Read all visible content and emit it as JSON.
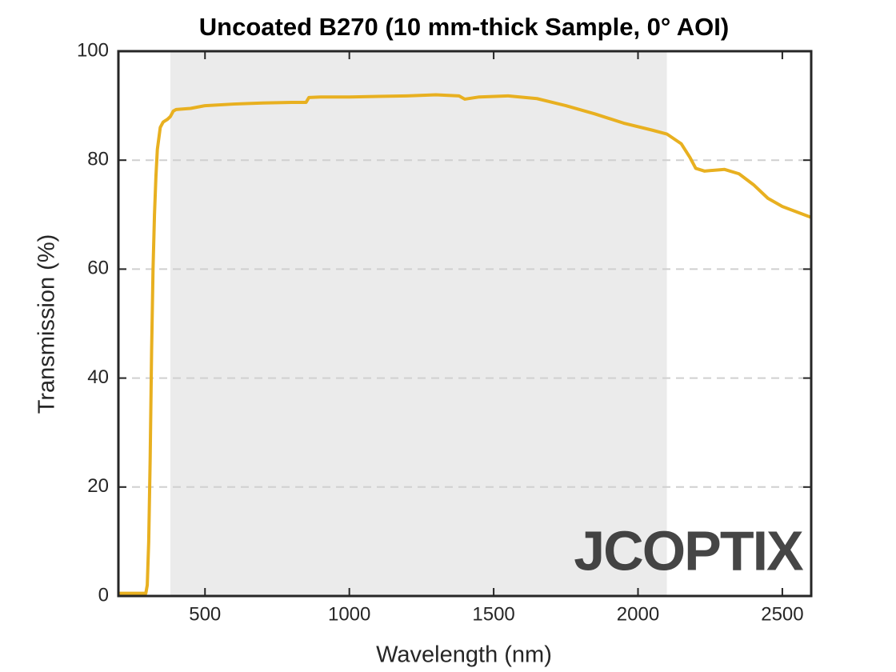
{
  "chart_data": {
    "type": "line",
    "title": "Uncoated B270 (10 mm-thick Sample, 0° AOI)",
    "x_label": "Wavelength (nm)",
    "y_label": "Transmission (%)",
    "watermark": "JCOPTIX",
    "highlight": {
      "x": [
        380,
        2100
      ],
      "color": "#ebebeb"
    },
    "xlim": [
      200,
      2600
    ],
    "xticks": [
      500,
      1000,
      1500,
      2000,
      2500
    ],
    "ylim": [
      0,
      100
    ],
    "yticks": [
      0,
      20,
      40,
      60,
      80,
      100
    ],
    "grid": true,
    "series": [
      {
        "name": "Transmission",
        "color": "#e8b020",
        "x": [
          200,
          295,
          300,
          305,
          310,
          315,
          320,
          325,
          330,
          335,
          345,
          355,
          370,
          380,
          390,
          400,
          450,
          500,
          600,
          700,
          800,
          850,
          860,
          900,
          1000,
          1100,
          1200,
          1300,
          1380,
          1400,
          1450,
          1550,
          1650,
          1750,
          1850,
          1950,
          2050,
          2100,
          2150,
          2180,
          2200,
          2230,
          2300,
          2350,
          2400,
          2450,
          2500,
          2600
        ],
        "values": [
          0.5,
          0.5,
          2,
          10,
          25,
          45,
          60,
          70,
          77,
          82,
          86,
          87,
          87.5,
          88,
          89,
          89.3,
          89.5,
          90,
          90.3,
          90.5,
          90.6,
          90.6,
          91.5,
          91.6,
          91.6,
          91.7,
          91.8,
          92,
          91.8,
          91.2,
          91.6,
          91.8,
          91.3,
          90,
          88.5,
          86.8,
          85.5,
          84.8,
          83,
          80.5,
          78.5,
          78,
          78.3,
          77.5,
          75.5,
          73,
          71.5,
          69.5
        ]
      }
    ]
  }
}
